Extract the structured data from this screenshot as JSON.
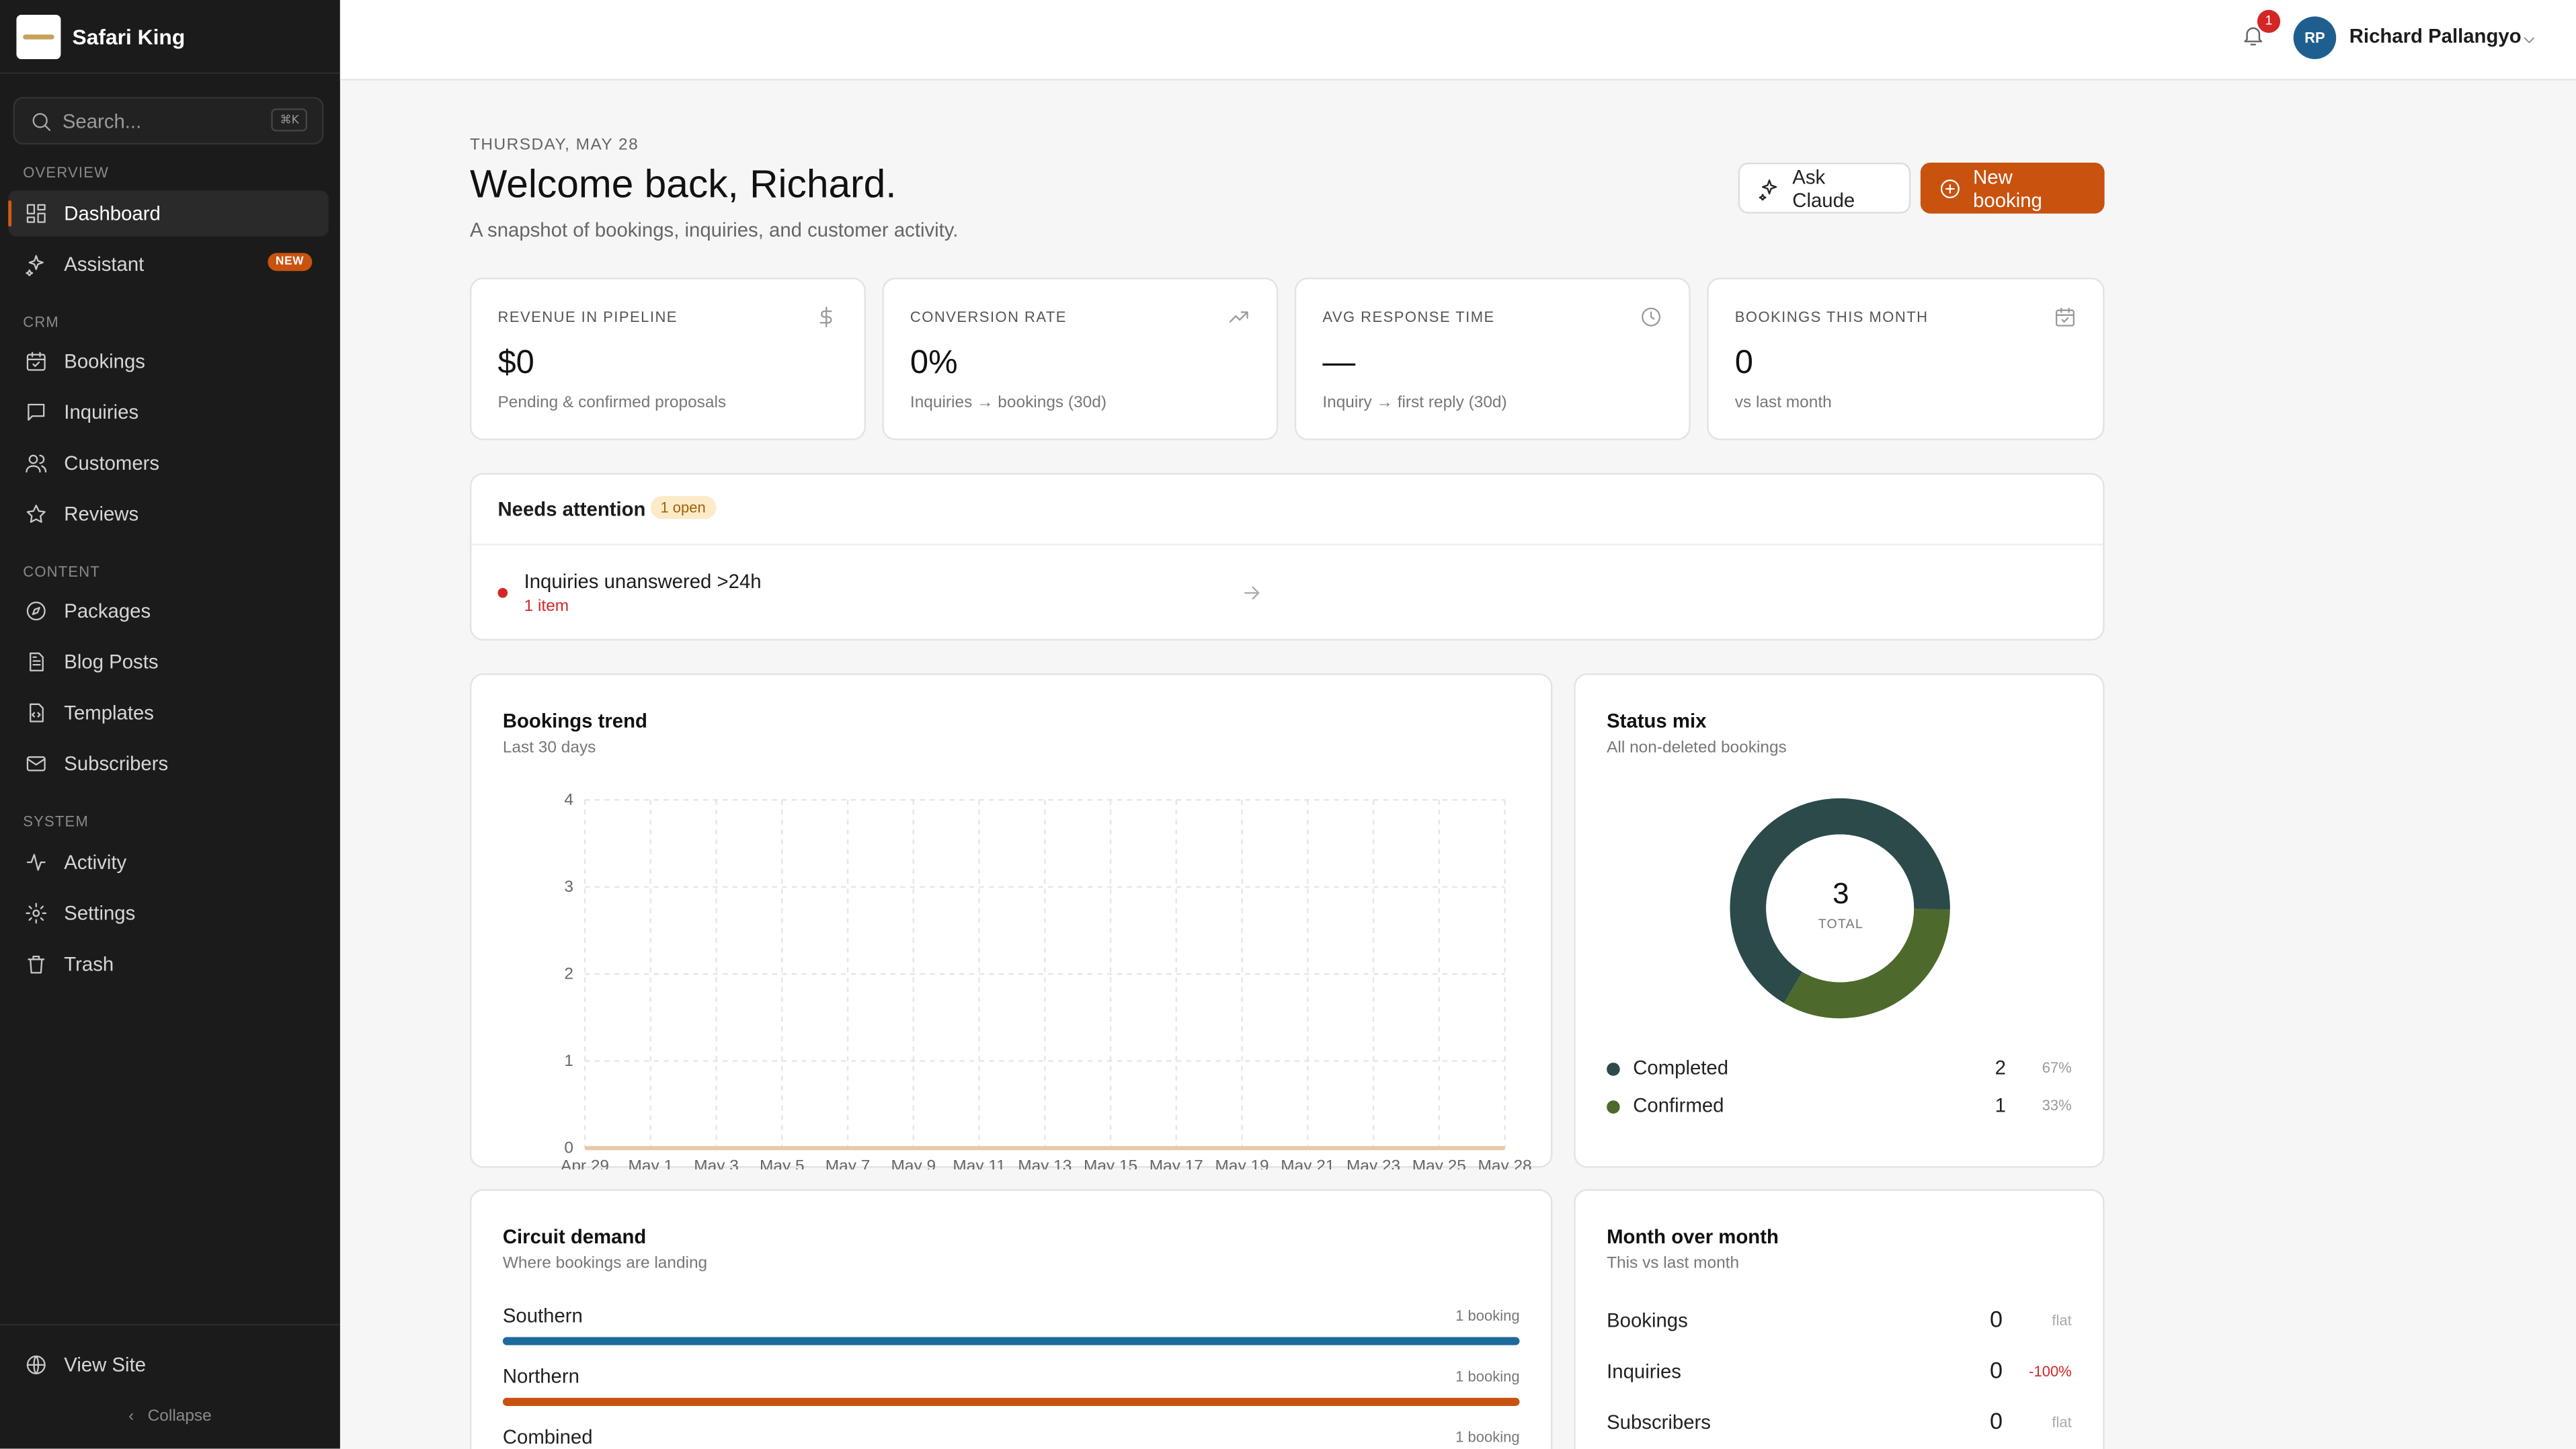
{
  "brand": {
    "name": "Safari King"
  },
  "sidebar": {
    "search_placeholder": "Search...",
    "search_shortcut": "⌘K",
    "sections": {
      "overview": "OVERVIEW",
      "crm": "CRM",
      "content": "CONTENT",
      "system": "SYSTEM"
    },
    "items": [
      {
        "label": "Dashboard",
        "icon": "grid-icon",
        "active": true
      },
      {
        "label": "Assistant",
        "icon": "sparkle-icon",
        "badge": "NEW"
      },
      {
        "label": "Bookings",
        "icon": "calendar-check-icon"
      },
      {
        "label": "Inquiries",
        "icon": "message-icon"
      },
      {
        "label": "Customers",
        "icon": "users-icon"
      },
      {
        "label": "Reviews",
        "icon": "star-icon"
      },
      {
        "label": "Packages",
        "icon": "compass-icon"
      },
      {
        "label": "Blog Posts",
        "icon": "document-icon"
      },
      {
        "label": "Templates",
        "icon": "template-icon"
      },
      {
        "label": "Subscribers",
        "icon": "mail-icon"
      },
      {
        "label": "Activity",
        "icon": "activity-icon"
      },
      {
        "label": "Settings",
        "icon": "gear-icon"
      },
      {
        "label": "Trash",
        "icon": "trash-icon"
      }
    ],
    "view_site": "View Site",
    "collapse": "Collapse"
  },
  "topbar": {
    "notifications": "1",
    "avatar_initials": "RP",
    "user_name": "Richard Pallangyo"
  },
  "header": {
    "date": "THURSDAY, MAY 28",
    "title": "Welcome back, Richard.",
    "subtitle": "A snapshot of bookings, inquiries, and customer activity.",
    "ask_button": "Ask Claude",
    "new_button": "New booking"
  },
  "kpis": [
    {
      "label": "REVENUE IN PIPELINE",
      "value": "$0",
      "note": "Pending & confirmed proposals",
      "icon": "dollar-icon"
    },
    {
      "label": "CONVERSION RATE",
      "value": "0%",
      "note": "Inquiries → bookings (30d)",
      "icon": "trending-up-icon"
    },
    {
      "label": "AVG RESPONSE TIME",
      "value": "—",
      "note": "Inquiry → first reply (30d)",
      "icon": "clock-icon"
    },
    {
      "label": "BOOKINGS THIS MONTH",
      "value": "0",
      "note": "vs last month",
      "icon": "calendar-icon"
    }
  ],
  "attention": {
    "title": "Needs attention",
    "badge": "1 open",
    "item": "Inquiries unanswered >24h",
    "count": "1 item"
  },
  "trend": {
    "title": "Bookings trend",
    "subtitle": "Last 30 days"
  },
  "status_mix": {
    "title": "Status mix",
    "subtitle": "All non-deleted bookings",
    "total": "3",
    "total_label": "TOTAL"
  },
  "circuit": {
    "title": "Circuit demand",
    "subtitle": "Where bookings are landing",
    "rows": [
      {
        "name": "Southern",
        "count": "1 booking",
        "color": "#1d6a9c",
        "share": 1
      },
      {
        "name": "Northern",
        "count": "1 booking",
        "color": "#c9520f",
        "share": 1
      },
      {
        "name": "Combined",
        "count": "1 booking",
        "color": "#4d6a2c",
        "share": 1
      }
    ]
  },
  "mom": {
    "title": "Month over month",
    "subtitle": "This vs last month",
    "rows": [
      {
        "label": "Bookings",
        "value": "0",
        "delta": "flat",
        "delta_color": "#aaaaaa"
      },
      {
        "label": "Inquiries",
        "value": "0",
        "delta": "-100%",
        "delta_color": "#d32626"
      },
      {
        "label": "Subscribers",
        "value": "0",
        "delta": "flat",
        "delta_color": "#aaaaaa"
      }
    ]
  },
  "chart_data": [
    {
      "type": "line",
      "title": "Bookings trend",
      "x_ticks": [
        "Apr 29",
        "May 1",
        "May 3",
        "May 5",
        "May 7",
        "May 9",
        "May 11",
        "May 13",
        "May 15",
        "May 17",
        "May 19",
        "May 21",
        "May 23",
        "May 25",
        "May 28"
      ],
      "y_ticks": [
        0,
        1,
        2,
        3,
        4
      ],
      "ylim": [
        0,
        4
      ],
      "grid": true,
      "series": [
        {
          "values": [
            0,
            0,
            0,
            0,
            0,
            0,
            0,
            0,
            0,
            0,
            0,
            0,
            0,
            0,
            0
          ],
          "color": "#e8c9a8"
        }
      ]
    },
    {
      "type": "pie",
      "title": "Status mix",
      "series": [
        {
          "name": "Completed",
          "value": 2,
          "percent": "67%",
          "color": "#2c4a4a"
        },
        {
          "name": "Confirmed",
          "value": 1,
          "percent": "33%",
          "color": "#4d6a2c"
        }
      ]
    }
  ]
}
